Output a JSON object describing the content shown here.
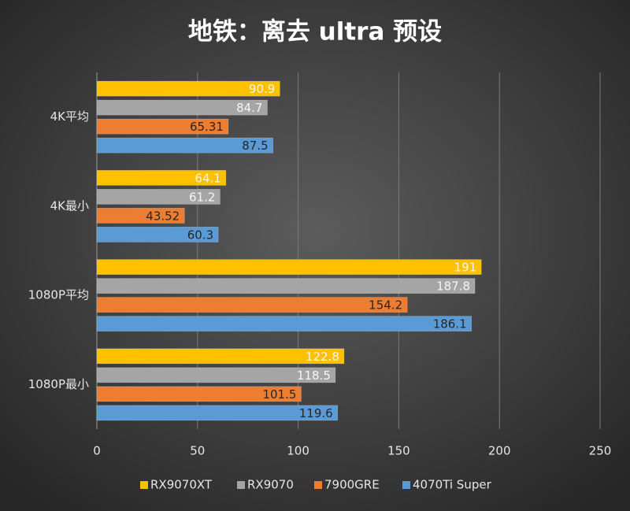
{
  "chart_data": {
    "type": "hbar",
    "title": "地铁：离去 ultra 预设",
    "categories": [
      "4K平均",
      "4K最小",
      "1080P平均",
      "1080P最小"
    ],
    "series": [
      {
        "name": "RX9070XT",
        "color": "#ffc000",
        "values": [
          90.9,
          64.1,
          191,
          122.8
        ]
      },
      {
        "name": "RX9070",
        "color": "#a5a5a5",
        "values": [
          84.7,
          61.2,
          187.8,
          118.5
        ]
      },
      {
        "name": "7900GRE",
        "color": "#ed7d31",
        "values": [
          65.31,
          43.52,
          154.2,
          101.5
        ]
      },
      {
        "name": "4070Ti Super",
        "color": "#5b9bd5",
        "values": [
          87.5,
          60.3,
          186.1,
          119.6
        ]
      }
    ],
    "xlim": [
      0,
      250
    ],
    "xticks": [
      0,
      50,
      100,
      150,
      200,
      250
    ],
    "grid": true,
    "legend": "bottom"
  }
}
